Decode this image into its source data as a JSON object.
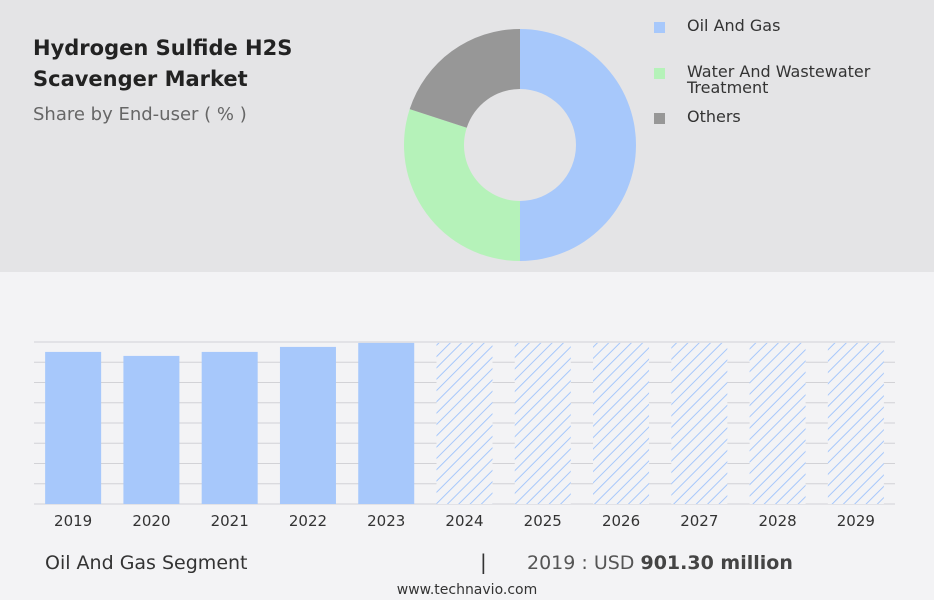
{
  "header": {
    "title": "Hydrogen Sulfide H2S Scavenger Market",
    "subtitle": "Share by End-user ( % )"
  },
  "chart_data": [
    {
      "type": "pie",
      "title": "Share by End-user ( % )",
      "donut": true,
      "labels": [
        "Oil And Gas",
        "Water And Wastewater Treatment",
        "Others"
      ],
      "values": [
        50,
        30,
        20
      ],
      "colors": [
        "#a7c8fb",
        "#b5f2b9",
        "#979797"
      ],
      "legend": "right"
    },
    {
      "type": "bar",
      "categories": [
        "2019",
        "2020",
        "2021",
        "2022",
        "2023",
        "2024",
        "2025",
        "2026",
        "2027",
        "2028",
        "2029"
      ],
      "values": [
        152,
        148,
        152,
        157,
        161,
        161,
        161,
        161,
        161,
        161,
        161
      ],
      "forecast_from": "2024",
      "ylim": [
        0,
        170
      ],
      "grid": true,
      "colors": {
        "actual": "#a7c8fb",
        "forecast": "#a7c8fb"
      }
    }
  ],
  "footer": {
    "segment_label": "Oil And Gas Segment",
    "separator": "|",
    "value_prefix": "2019 : USD",
    "value_bold": "901.30 million"
  },
  "source": "www.technavio.com"
}
